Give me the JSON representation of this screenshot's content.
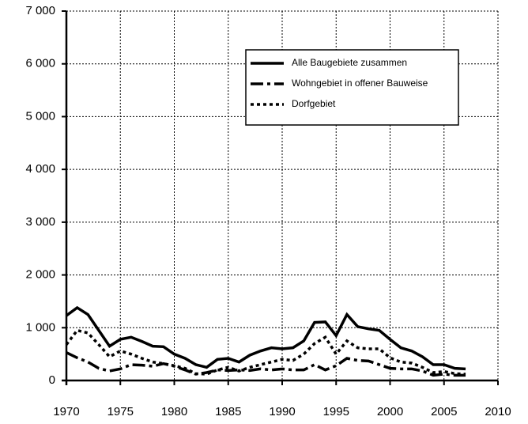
{
  "chart_data": {
    "type": "line",
    "x": [
      1970,
      1971,
      1972,
      1973,
      1974,
      1975,
      1976,
      1977,
      1978,
      1979,
      1980,
      1981,
      1982,
      1983,
      1984,
      1985,
      1986,
      1987,
      1988,
      1989,
      1990,
      1991,
      1992,
      1993,
      1994,
      1995,
      1996,
      1997,
      1998,
      1999,
      2000,
      2001,
      2002,
      2003,
      2004,
      2005,
      2006,
      2007
    ],
    "series": [
      {
        "name": "Alle Baugebiete zusammen",
        "color": "#000000",
        "style": "solid",
        "values": [
          1230,
          1380,
          1250,
          950,
          650,
          780,
          820,
          740,
          650,
          640,
          500,
          420,
          300,
          250,
          400,
          420,
          350,
          480,
          560,
          620,
          600,
          620,
          750,
          1100,
          1110,
          850,
          1250,
          1020,
          980,
          950,
          780,
          620,
          560,
          450,
          300,
          300,
          230,
          220
        ]
      },
      {
        "name": "Wohngebiet in offener Bauweise",
        "color": "#000000",
        "style": "dashdot",
        "values": [
          530,
          430,
          350,
          230,
          180,
          220,
          300,
          290,
          270,
          320,
          270,
          200,
          120,
          150,
          200,
          190,
          200,
          190,
          220,
          200,
          220,
          200,
          200,
          300,
          200,
          280,
          420,
          380,
          370,
          300,
          230,
          220,
          220,
          180,
          100,
          120,
          100,
          100
        ]
      },
      {
        "name": "Dorfgebiet",
        "color": "#000000",
        "style": "dotted",
        "values": [
          680,
          950,
          900,
          680,
          450,
          560,
          500,
          420,
          350,
          320,
          280,
          230,
          130,
          120,
          200,
          250,
          180,
          250,
          300,
          350,
          400,
          380,
          500,
          700,
          820,
          500,
          750,
          620,
          600,
          600,
          430,
          350,
          330,
          250,
          150,
          170,
          130,
          120
        ]
      }
    ],
    "xlim": [
      1970,
      2010
    ],
    "xticks": [
      1970,
      1975,
      1980,
      1985,
      1990,
      1995,
      2000,
      2005,
      2010
    ],
    "ylim": [
      0,
      7000
    ],
    "yticks": [
      0,
      {
        "value": 1000,
        "label": "1 000"
      },
      {
        "value": 2000,
        "label": "2 000"
      },
      {
        "value": 3000,
        "label": "3 000"
      },
      {
        "value": 4000,
        "label": "4 000"
      },
      {
        "value": 5000,
        "label": "5 000"
      },
      {
        "value": 6000,
        "label": "6 000"
      },
      {
        "value": 7000,
        "label": "7 000"
      }
    ],
    "grid": true,
    "legend": "upper right"
  }
}
